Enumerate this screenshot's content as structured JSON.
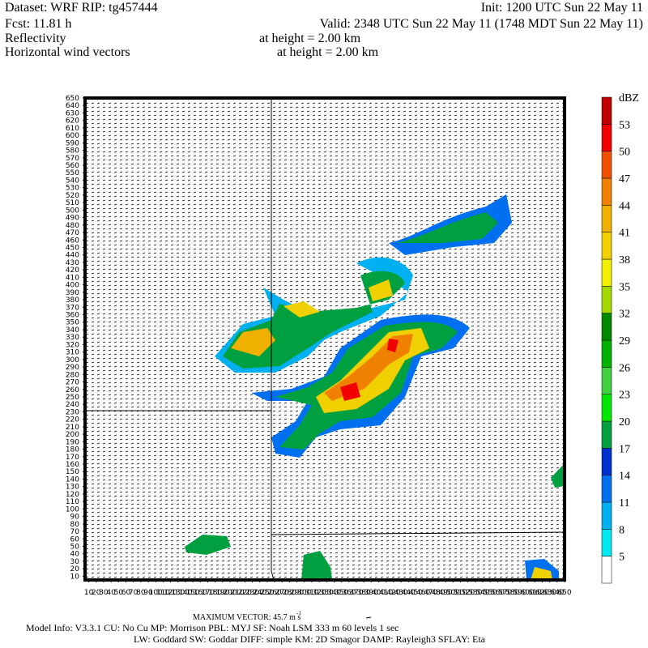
{
  "header": {
    "dataset": "Dataset: WRF  RIP: tg457444",
    "init": "Init: 1200 UTC Sun 22 May 11",
    "fcst": "Fcst:   11.81 h",
    "valid": "Valid: 2348 UTC Sun 22 May 11 (1748 MDT Sun 22 May 11)",
    "field1": "Reflectivity",
    "field1_height": "at height =  2.00 km",
    "field2": "Horizontal wind vectors",
    "field2_height": "at height =  2.00 km"
  },
  "chart_data": {
    "type": "map",
    "xlim": [
      5,
      650
    ],
    "ylim": [
      5,
      650
    ],
    "xticks": [
      10,
      20,
      30,
      40,
      50,
      60,
      70,
      80,
      90,
      100,
      110,
      120,
      130,
      140,
      150,
      160,
      170,
      180,
      190,
      200,
      210,
      220,
      230,
      240,
      250,
      260,
      270,
      280,
      290,
      300,
      310,
      320,
      330,
      340,
      350,
      360,
      370,
      380,
      390,
      400,
      410,
      420,
      430,
      440,
      450,
      460,
      470,
      480,
      490,
      500,
      510,
      520,
      530,
      540,
      550,
      560,
      570,
      580,
      590,
      600,
      610,
      620,
      630,
      640,
      650
    ],
    "yticks": [
      10,
      20,
      30,
      40,
      50,
      60,
      70,
      80,
      90,
      100,
      110,
      120,
      130,
      140,
      150,
      160,
      170,
      180,
      190,
      200,
      210,
      220,
      230,
      240,
      250,
      260,
      270,
      280,
      290,
      300,
      310,
      320,
      330,
      340,
      350,
      360,
      370,
      380,
      390,
      400,
      410,
      420,
      430,
      440,
      450,
      460,
      470,
      480,
      490,
      500,
      510,
      520,
      530,
      540,
      550,
      560,
      570,
      580,
      590,
      600,
      610,
      620,
      630,
      640,
      650
    ],
    "colorbar": {
      "unit": "dBZ",
      "levels": [
        5,
        8,
        11,
        14,
        17,
        20,
        23,
        26,
        29,
        32,
        35,
        38,
        41,
        44,
        47,
        50,
        53
      ],
      "colors": [
        "#ffffff",
        "#00e8f0",
        "#00b0f0",
        "#0070f0",
        "#0030d0",
        "#00a040",
        "#00e800",
        "#40d040",
        "#00b000",
        "#008800",
        "#a0d800",
        "#f0f000",
        "#f0d000",
        "#f0b000",
        "#f08000",
        "#f05000",
        "#f00000",
        "#c00000"
      ]
    }
  },
  "footer": {
    "max_vector": "MAXIMUM VECTOR:  45.7 m s",
    "max_vector_unit_exp": "-1",
    "model_info": "Model Info: V3.3.1    CU: No Cu    MP: Morrison     PBL: MYJ       SF: Noah LSM     333 m    60 levels     1 sec",
    "model_info2": "LW: Goddard  SW: Goddar  DIFF: simple  KM: 2D Smagor  DAMP: Rayleigh3   SFLAY: Eta"
  }
}
